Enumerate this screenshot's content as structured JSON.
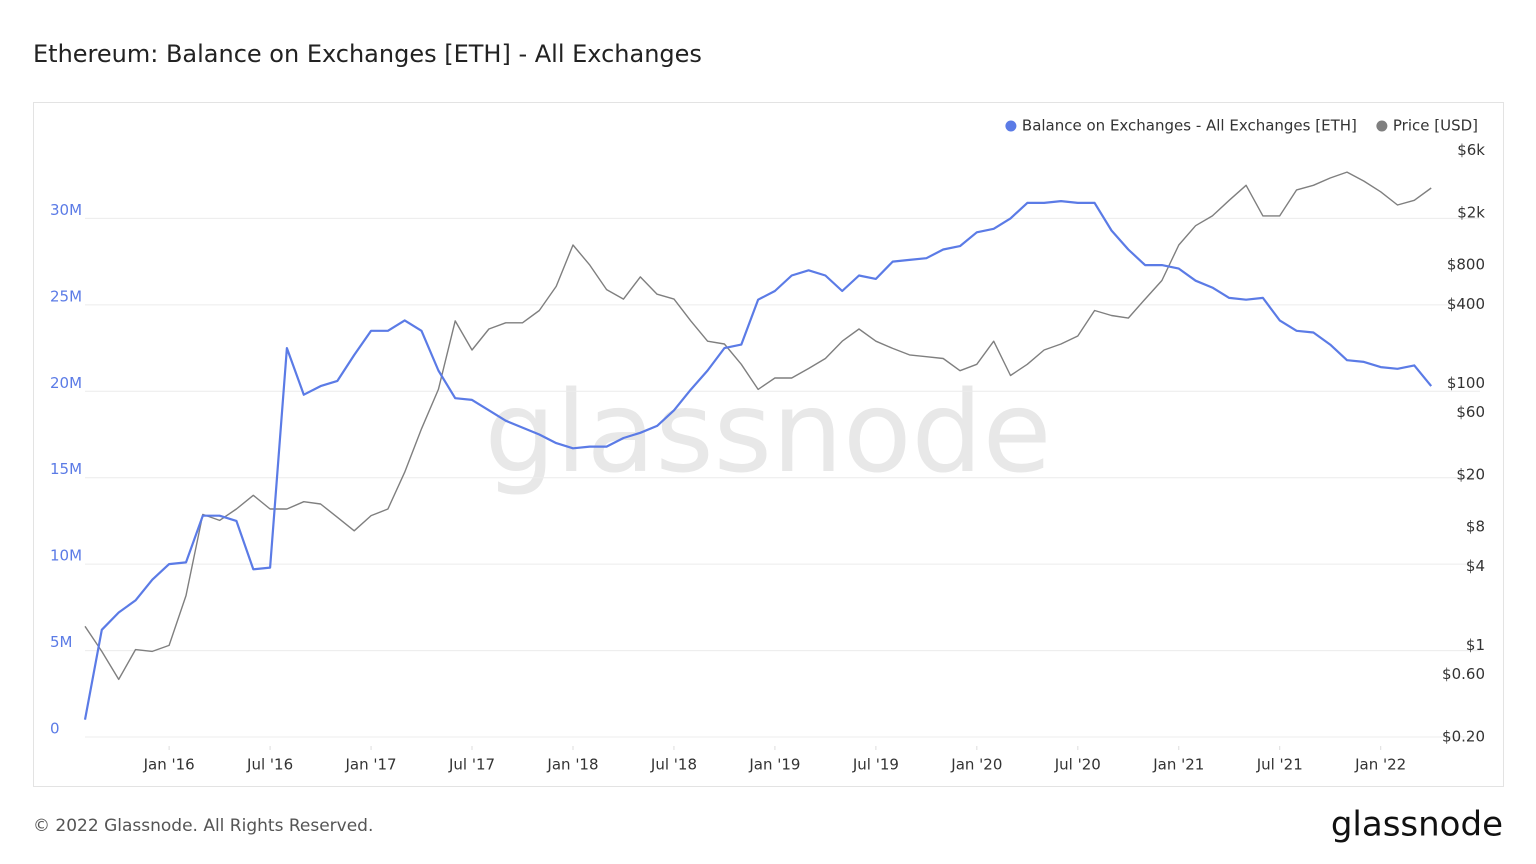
{
  "chart_data": {
    "type": "line",
    "title": "Ethereum: Balance on Exchanges [ETH] - All Exchanges",
    "watermark": "glassnode",
    "x": [
      "2015-08",
      "2015-09",
      "2015-10",
      "2015-11",
      "2015-12",
      "2016-01",
      "2016-02",
      "2016-03",
      "2016-04",
      "2016-05",
      "2016-06",
      "2016-07",
      "2016-08",
      "2016-09",
      "2016-10",
      "2016-11",
      "2016-12",
      "2017-01",
      "2017-02",
      "2017-03",
      "2017-04",
      "2017-05",
      "2017-06",
      "2017-07",
      "2017-08",
      "2017-09",
      "2017-10",
      "2017-11",
      "2017-12",
      "2018-01",
      "2018-02",
      "2018-03",
      "2018-04",
      "2018-05",
      "2018-06",
      "2018-07",
      "2018-08",
      "2018-09",
      "2018-10",
      "2018-11",
      "2018-12",
      "2019-01",
      "2019-02",
      "2019-03",
      "2019-04",
      "2019-05",
      "2019-06",
      "2019-07",
      "2019-08",
      "2019-09",
      "2019-10",
      "2019-11",
      "2019-12",
      "2020-01",
      "2020-02",
      "2020-03",
      "2020-04",
      "2020-05",
      "2020-06",
      "2020-07",
      "2020-08",
      "2020-09",
      "2020-10",
      "2020-11",
      "2020-12",
      "2021-01",
      "2021-02",
      "2021-03",
      "2021-04",
      "2021-05",
      "2021-06",
      "2021-07",
      "2021-08",
      "2021-09",
      "2021-10",
      "2021-11",
      "2021-12",
      "2022-01",
      "2022-02",
      "2022-03",
      "2022-04"
    ],
    "xlim": [
      "2015-08",
      "2022-05"
    ],
    "xticks": [
      {
        "value": "2016-01",
        "label": "Jan '16"
      },
      {
        "value": "2016-07",
        "label": "Jul '16"
      },
      {
        "value": "2017-01",
        "label": "Jan '17"
      },
      {
        "value": "2017-07",
        "label": "Jul '17"
      },
      {
        "value": "2018-01",
        "label": "Jan '18"
      },
      {
        "value": "2018-07",
        "label": "Jul '18"
      },
      {
        "value": "2019-01",
        "label": "Jan '19"
      },
      {
        "value": "2019-07",
        "label": "Jul '19"
      },
      {
        "value": "2020-01",
        "label": "Jan '20"
      },
      {
        "value": "2020-07",
        "label": "Jul '20"
      },
      {
        "value": "2021-01",
        "label": "Jan '21"
      },
      {
        "value": "2021-07",
        "label": "Jul '21"
      },
      {
        "value": "2022-01",
        "label": "Jan '22"
      }
    ],
    "ylim": [
      0,
      35000000
    ],
    "yticks": [
      0,
      {
        "value": 5000000,
        "label": "5M"
      },
      {
        "value": 10000000,
        "label": "10M"
      },
      {
        "value": 15000000,
        "label": "15M"
      },
      {
        "value": 20000000,
        "label": "20M"
      },
      {
        "value": 25000000,
        "label": "25M"
      },
      {
        "value": 30000000,
        "label": "30M"
      }
    ],
    "y2lim": [
      0.2,
      8300
    ],
    "y2scale": "log",
    "y2ticks": [
      {
        "value": 0.2,
        "label": "$0.20"
      },
      {
        "value": 0.6,
        "label": "$0.60"
      },
      {
        "value": 1,
        "label": "$1"
      },
      {
        "value": 4,
        "label": "$4"
      },
      {
        "value": 8,
        "label": "$8"
      },
      {
        "value": 20,
        "label": "$20"
      },
      {
        "value": 60,
        "label": "$60"
      },
      {
        "value": 100,
        "label": "$100"
      },
      {
        "value": 400,
        "label": "$400"
      },
      {
        "value": 800,
        "label": "$800"
      },
      {
        "value": 2000,
        "label": "$2k"
      },
      {
        "value": 6000,
        "label": "$6k"
      }
    ],
    "grid": true,
    "legend": "top-right",
    "series": [
      {
        "name": "Balance on Exchanges - All Exchanges [ETH]",
        "color": "#5b7be6",
        "axis": "y",
        "values": [
          1000000,
          6200000,
          7200000,
          7900000,
          9100000,
          10000000,
          10100000,
          12800000,
          12800000,
          12500000,
          9700000,
          9800000,
          22500000,
          19800000,
          20300000,
          20600000,
          22100000,
          23500000,
          23500000,
          24100000,
          23500000,
          21200000,
          19600000,
          19500000,
          18900000,
          18300000,
          17900000,
          17500000,
          17000000,
          16700000,
          16800000,
          16800000,
          17300000,
          17600000,
          18000000,
          18900000,
          20100000,
          21200000,
          22500000,
          22700000,
          25300000,
          25800000,
          26700000,
          27000000,
          26700000,
          25800000,
          26700000,
          26500000,
          27500000,
          27600000,
          27700000,
          28200000,
          28400000,
          29200000,
          29400000,
          30000000,
          30900000,
          30900000,
          31000000,
          30900000,
          30900000,
          29300000,
          28200000,
          27300000,
          27300000,
          27100000,
          26400000,
          26000000,
          25400000,
          25300000,
          25400000,
          24100000,
          23500000,
          23400000,
          22700000,
          21800000,
          21700000,
          21400000,
          21300000,
          21500000,
          20300000
        ]
      },
      {
        "name": "Price [USD]",
        "color": "#7f7f7f",
        "axis": "y2",
        "values": [
          1.4,
          0.9,
          0.55,
          0.93,
          0.9,
          1.0,
          2.4,
          10,
          9,
          11,
          14,
          11,
          11,
          12.5,
          12,
          9.5,
          7.5,
          9.8,
          11,
          21,
          45,
          90,
          300,
          180,
          260,
          290,
          290,
          360,
          550,
          1140,
          800,
          520,
          440,
          650,
          480,
          440,
          300,
          210,
          200,
          140,
          90,
          110,
          110,
          130,
          155,
          210,
          260,
          210,
          185,
          165,
          160,
          155,
          125,
          140,
          210,
          115,
          140,
          180,
          200,
          230,
          360,
          330,
          315,
          440,
          610,
          1140,
          1600,
          1900,
          2500,
          3250,
          1900,
          1900,
          3000,
          3250,
          3700,
          4100,
          3500,
          2900,
          2300,
          2500,
          3100
        ]
      }
    ]
  },
  "footer": {
    "copyright": "© 2022 Glassnode. All Rights Reserved.",
    "logo": "glassnode"
  }
}
